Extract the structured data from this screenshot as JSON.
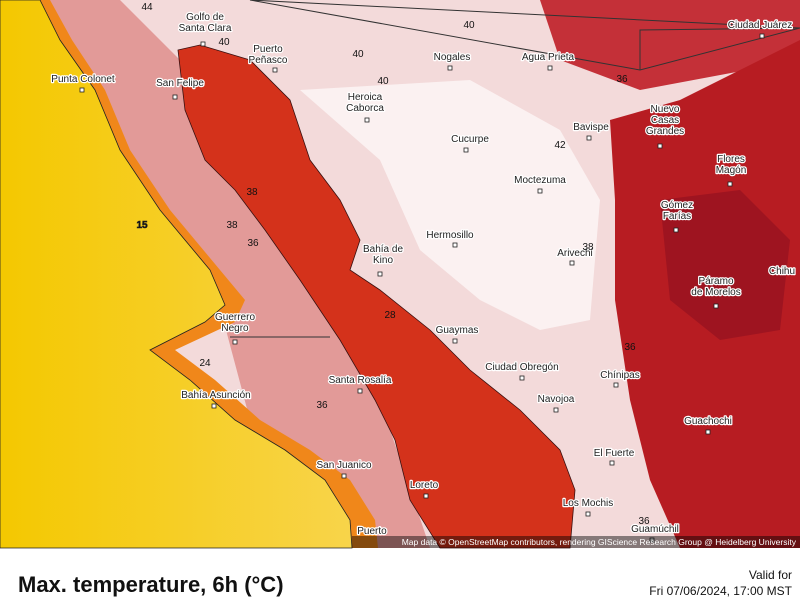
{
  "map": {
    "cities": [
      [
        "Golfo de",
        "Santa Clara"
      ],
      [
        "Puerto",
        "Peñasco"
      ],
      [
        "Punta Colonet"
      ],
      [
        "San Felipe"
      ],
      [
        "Nogales"
      ],
      [
        "Agua Prieta"
      ],
      [
        "Ciudad Juárez"
      ],
      [
        "Heroica",
        "Caborca"
      ],
      [
        "Bavispe"
      ],
      [
        "Nuevo",
        "Casas",
        "Grandes"
      ],
      [
        "Cucurpe"
      ],
      [
        "Moctezuma"
      ],
      [
        "Flores",
        "Magón"
      ],
      [
        "Gómez",
        "Farías"
      ],
      [
        "Hermosillo"
      ],
      [
        "Bahía de",
        "Kino"
      ],
      [
        "Arivechi"
      ],
      [
        "Chihu"
      ],
      [
        "Páramo",
        "de Morelos"
      ],
      [
        "Guerrero",
        "Negro"
      ],
      [
        "Guaymas"
      ],
      [
        "Ciudad Obregón"
      ],
      [
        "Chínipas"
      ],
      [
        "Santa Rosalía"
      ],
      [
        "Bahía Asunción"
      ],
      [
        "Navojoa"
      ],
      [
        "Guachochi"
      ],
      [
        "San Juanico"
      ],
      [
        "El Fuerte"
      ],
      [
        "Loreto"
      ],
      [
        "Los Mochis"
      ],
      [
        "Guamúchil"
      ],
      [
        "Puerto"
      ]
    ],
    "contour_labels": [
      44,
      40,
      40,
      40,
      40,
      36,
      42,
      38,
      36,
      15,
      36,
      24,
      36,
      28,
      38,
      36,
      38
    ],
    "attribution": "Map data © OpenStreetMap contributors, rendering GIScience Research Group @ Heidelberg University"
  },
  "footer": {
    "title": "Max. temperature, 6h (°C)",
    "valid_label": "Valid for",
    "valid_time": "Fri 07/06/2024, 17:00 MST"
  }
}
